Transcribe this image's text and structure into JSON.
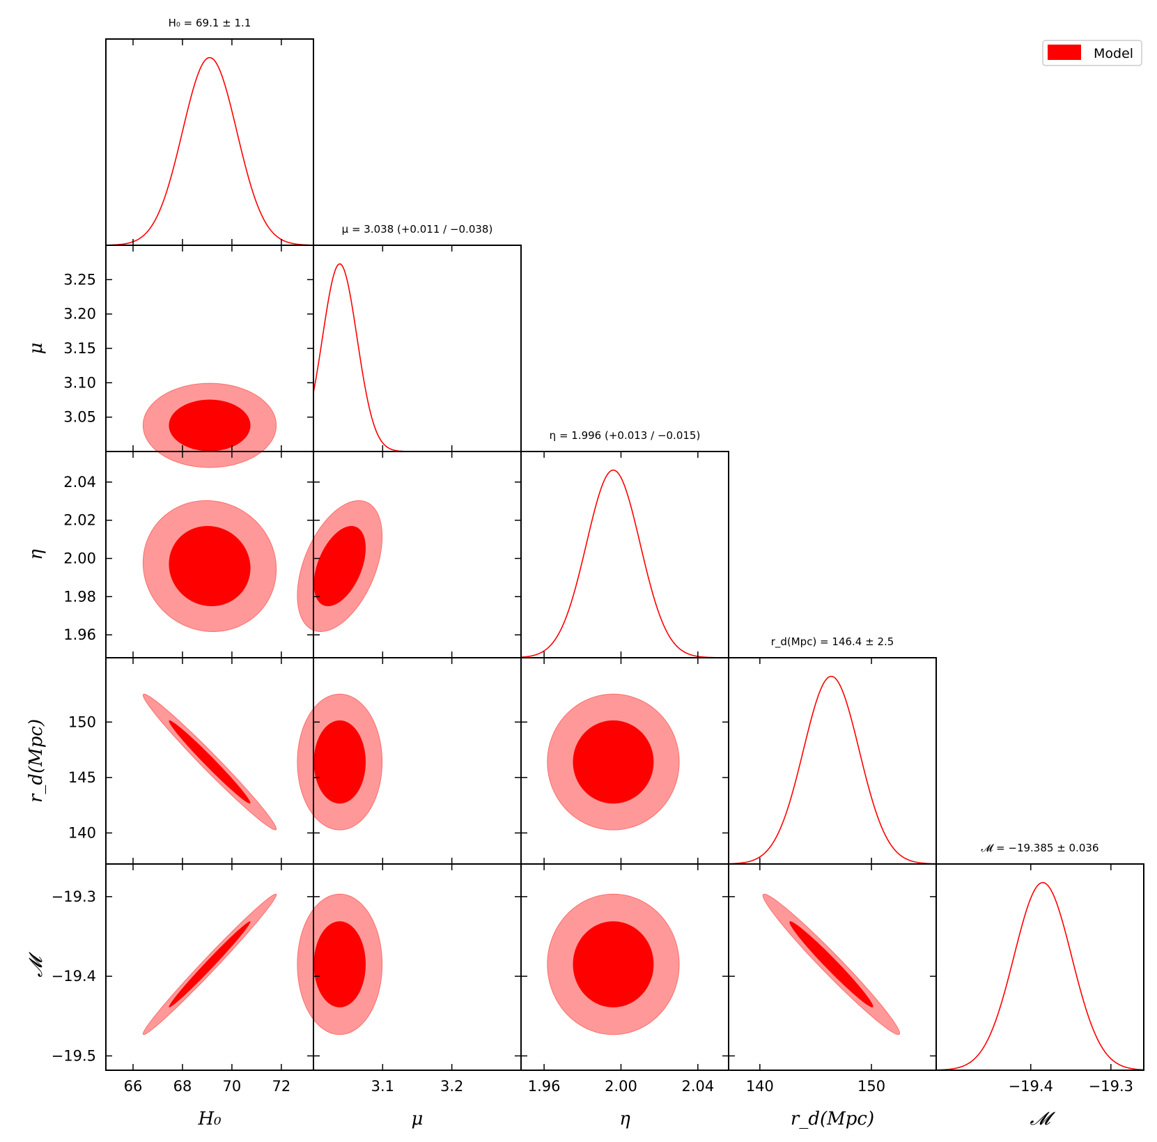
{
  "chart_data": {
    "type": "corner",
    "colors": {
      "line": "#ff0000",
      "fill_68": "#ff0000",
      "fill_95": "#ff9999"
    },
    "legend": {
      "label": "Model",
      "placement": "top-right"
    },
    "parameters": [
      {
        "name": "H0",
        "axis_label": "H₀",
        "axis_label_plain": "H0",
        "title": "H₀ = 69.1 ± 1.1",
        "mean": 69.1,
        "sigma": 1.1,
        "range": [
          64.9,
          73.3
        ],
        "ticks": [
          66,
          68,
          70,
          72
        ],
        "tick_labels": [
          "66",
          "68",
          "70",
          "72"
        ]
      },
      {
        "name": "mu",
        "axis_label": "μ",
        "title": "μ = 3.038 (+0.011 / −0.038)",
        "mean": 3.038,
        "sigma": 0.025,
        "range": [
          3.0,
          3.3
        ],
        "ticks": [
          3.1,
          3.2
        ],
        "tick_labels": [
          "3.1",
          "3.2"
        ],
        "y_ticks": [
          3.05,
          3.1,
          3.15,
          3.2,
          3.25
        ],
        "y_tick_labels": [
          "3.05",
          "3.10",
          "3.15",
          "3.20",
          "3.25"
        ]
      },
      {
        "name": "eta",
        "axis_label": "η",
        "title": "η = 1.996 (+0.013 / −0.015)",
        "mean": 1.996,
        "sigma": 0.014,
        "range": [
          1.948,
          2.056
        ],
        "ticks": [
          1.96,
          2.0,
          2.04
        ],
        "tick_labels": [
          "1.96",
          "2.00",
          "2.04"
        ],
        "y_ticks": [
          1.96,
          1.98,
          2.0,
          2.02,
          2.04
        ],
        "y_tick_labels": [
          "1.96",
          "1.98",
          "2.00",
          "2.02",
          "2.04"
        ]
      },
      {
        "name": "rd",
        "axis_label": "r_d(Mpc)",
        "title": "r_d(Mpc) = 146.4 ± 2.5",
        "mean": 146.4,
        "sigma": 2.5,
        "range": [
          137.2,
          155.8
        ],
        "ticks": [
          140,
          150
        ],
        "tick_labels": [
          "140",
          "150"
        ],
        "y_ticks": [
          140,
          145,
          150
        ],
        "y_tick_labels": [
          "140",
          "145",
          "150"
        ]
      },
      {
        "name": "M",
        "axis_label": "𝓜",
        "title": "𝓜 = −19.385 ± 0.036",
        "mean": -19.385,
        "sigma": 0.036,
        "range": [
          -19.518,
          -19.259
        ],
        "ticks": [
          -19.4,
          -19.3
        ],
        "tick_labels": [
          "−19.4",
          "−19.3"
        ],
        "y_ticks": [
          -19.5,
          -19.4,
          -19.3
        ],
        "y_tick_labels": [
          "−19.5",
          "−19.4",
          "−19.3"
        ]
      }
    ],
    "correlations": {
      "H0-mu": 0.0,
      "H0-eta": -0.05,
      "H0-rd": -0.985,
      "H0-M": 0.99,
      "mu-eta": 0.45,
      "mu-rd": 0.0,
      "mu-M": 0.0,
      "eta-rd": 0.0,
      "eta-M": 0.0,
      "rd-M": -0.98
    }
  }
}
